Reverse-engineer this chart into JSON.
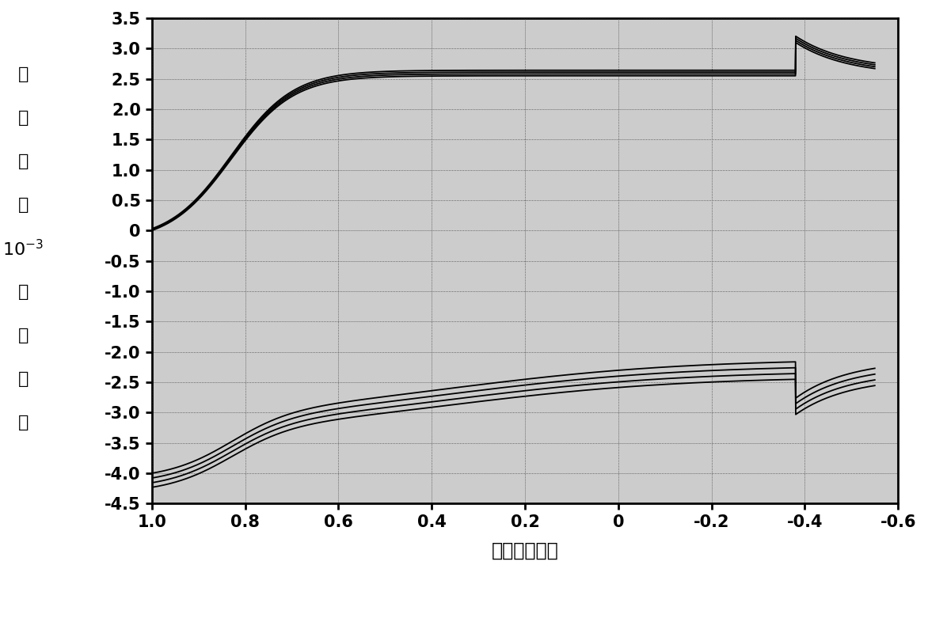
{
  "xlabel": "电压（伏特）",
  "ylabel_chars": [
    "电",
    "流",
    "（",
    "）",
    "10",
    "安",
    "培"
  ],
  "xlim": [
    1.0,
    -0.6
  ],
  "ylim": [
    -4.5,
    3.5
  ],
  "xticks": [
    1.0,
    0.8,
    0.6,
    0.4,
    0.2,
    0.0,
    -0.2,
    -0.4,
    -0.6
  ],
  "yticks": [
    3.5,
    3.0,
    2.5,
    2.0,
    1.5,
    1.0,
    0.5,
    0,
    -0.5,
    -1.0,
    -1.5,
    -2.0,
    -2.5,
    -3.0,
    -3.5,
    -4.0,
    -4.5
  ],
  "line_color": "#000000",
  "bg_color": "#cccccc",
  "num_cycles": 4
}
